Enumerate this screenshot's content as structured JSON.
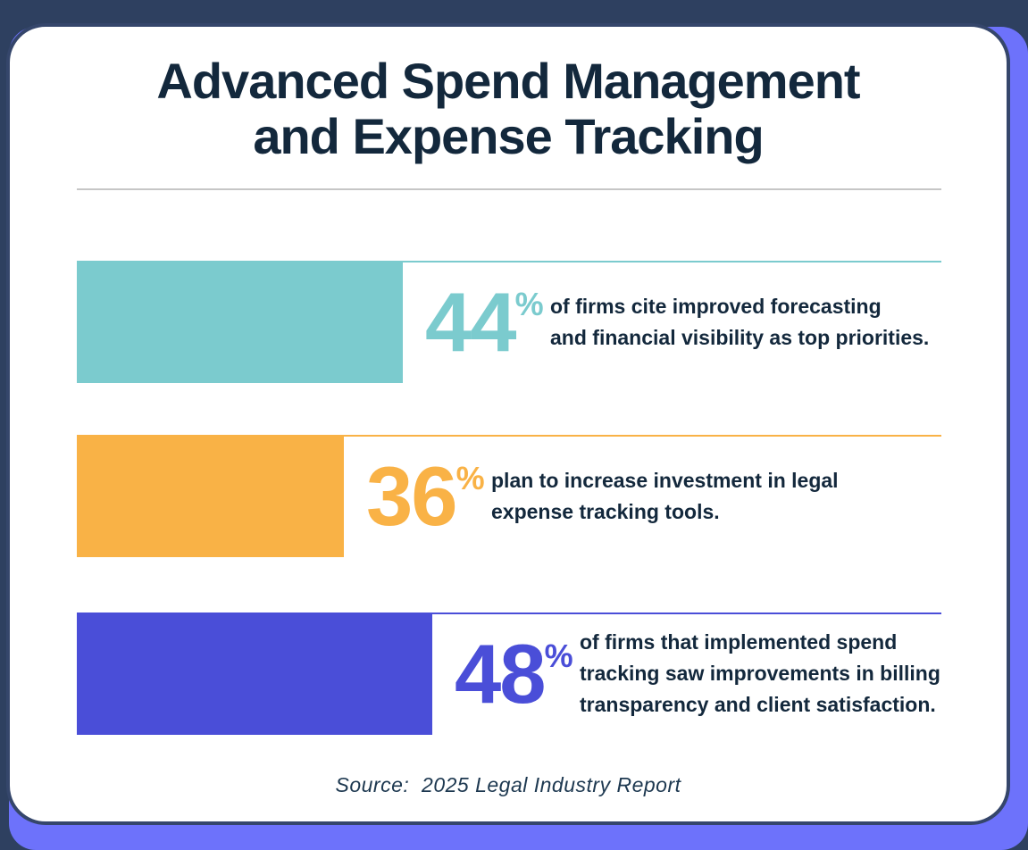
{
  "header": {
    "title_line1": "Advanced Spend Management",
    "title_line2": "and Expense Tracking"
  },
  "footer": {
    "source": "Source:  2025 Legal Industry Report"
  },
  "chart_data": {
    "type": "bar",
    "orientation": "horizontal",
    "title": "Advanced Spend Management and Expense Tracking",
    "unit": "%",
    "xlim": [
      0,
      100
    ],
    "grid": false,
    "legend": "none",
    "categories": [
      "of firms cite improved forecasting and financial visibility as top priorities.",
      "plan to increase investment in legal expense tracking tools.",
      "of firms that implemented spend tracking saw improvements in billing transparency and client satisfaction."
    ],
    "values": [
      44,
      36,
      48
    ],
    "bar_colors": [
      "#7bcbce",
      "#f9b246",
      "#4a4ed8"
    ],
    "source": "2025 Legal Industry Report"
  },
  "stats": [
    {
      "value": "44",
      "unit": "%",
      "color": "#7bcbce",
      "desc": {
        "0": "of firms cite improved forecasting",
        "1": "and financial visibility as top priorities.",
        "2": ""
      }
    },
    {
      "value": "36",
      "unit": "%",
      "color": "#f9b246",
      "desc": {
        "0": "plan to increase investment in legal",
        "1": "expense tracking tools.",
        "2": ""
      }
    },
    {
      "value": "48",
      "unit": "%",
      "color": "#4a4ed8",
      "desc": {
        "0": "of firms that implemented spend",
        "1": "tracking saw improvements in billing",
        "2": "transparency and client satisfaction."
      }
    }
  ],
  "theme": {
    "outer_navy": "#2e4060",
    "panel_purple": "#6d72fb",
    "card_border": "#35466b",
    "text_navy": "#13283c",
    "divider_gray": "#c6c6c6"
  }
}
